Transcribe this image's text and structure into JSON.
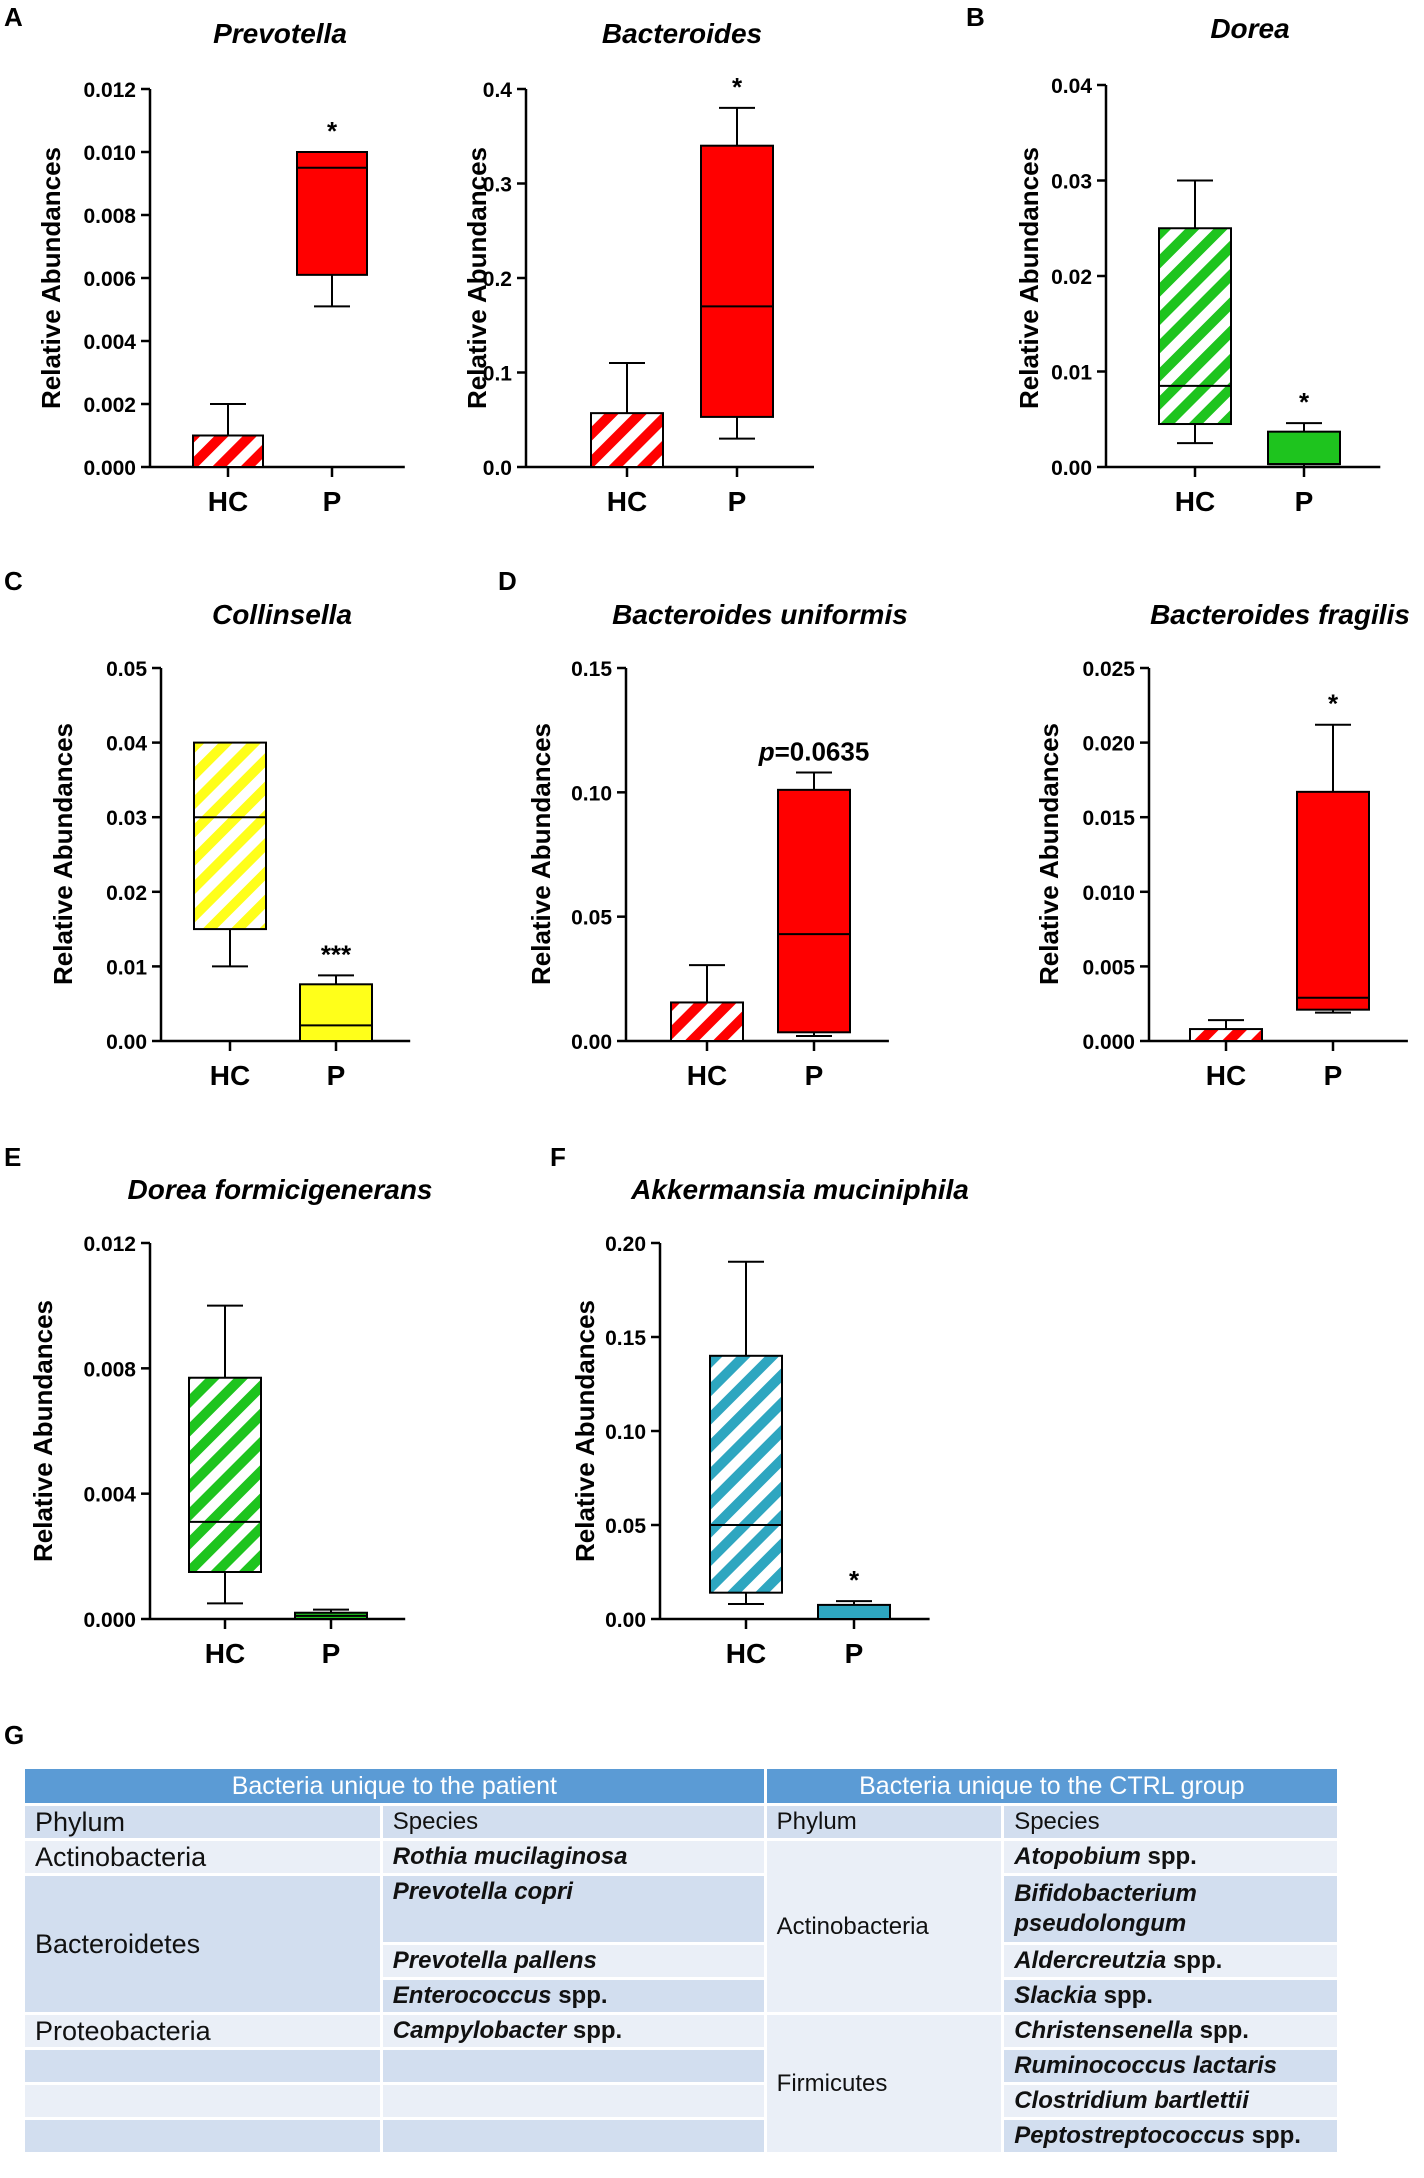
{
  "colors": {
    "red": "#ff0000",
    "green": "#1ec41e",
    "yellow": "#ffff1a",
    "teal": "#2ea6c0",
    "header_blue": "#5b9bd5",
    "row_light": "#eaeff7",
    "row_dark": "#d2deef"
  },
  "chart_data": [
    {
      "panel": "A",
      "type": "box",
      "title": "Prevotella",
      "ylabel": "Relative Abundances",
      "ylim": [
        0,
        0.012
      ],
      "yticks": [
        "0.000",
        "0.002",
        "0.004",
        "0.006",
        "0.008",
        "0.010",
        "0.012"
      ],
      "groups": [
        {
          "name": "HC",
          "min": 0.0,
          "q1": 0.0,
          "median": 0.0,
          "q3": 0.001,
          "max": 0.002,
          "color": "red",
          "hatch": true
        },
        {
          "name": "P",
          "min": 0.0051,
          "q1": 0.0061,
          "median": 0.0095,
          "q3": 0.01,
          "max": 0.01,
          "color": "red",
          "hatch": false,
          "annotation": "*"
        }
      ]
    },
    {
      "panel": "",
      "type": "box",
      "title": "Bacteroides",
      "ylabel": "Relative Abundances",
      "ylim": [
        0,
        0.4
      ],
      "yticks": [
        "0.0",
        "0.1",
        "0.2",
        "0.3",
        "0.4"
      ],
      "groups": [
        {
          "name": "HC",
          "min": 0.0,
          "q1": 0.0,
          "median": 0.0,
          "q3": 0.057,
          "max": 0.11,
          "color": "red",
          "hatch": true
        },
        {
          "name": "P",
          "min": 0.03,
          "q1": 0.053,
          "median": 0.17,
          "q3": 0.34,
          "max": 0.38,
          "color": "red",
          "hatch": false,
          "annotation": "*"
        }
      ]
    },
    {
      "panel": "B",
      "type": "box",
      "title": "Dorea",
      "ylabel": "Relative Abundances",
      "ylim": [
        0,
        0.04
      ],
      "yticks": [
        "0.00",
        "0.01",
        "0.02",
        "0.03",
        "0.04"
      ],
      "groups": [
        {
          "name": "HC",
          "min": 0.0025,
          "q1": 0.0045,
          "median": 0.0085,
          "q3": 0.025,
          "max": 0.03,
          "color": "green",
          "hatch": true
        },
        {
          "name": "P",
          "min": 0.0,
          "q1": 0.0003,
          "median": 0.0003,
          "q3": 0.0037,
          "max": 0.0046,
          "color": "green",
          "hatch": false,
          "annotation": "*"
        }
      ]
    },
    {
      "panel": "C",
      "type": "box",
      "title": "Collinsella",
      "ylabel": "Relative Abundances",
      "ylim": [
        0,
        0.05
      ],
      "yticks": [
        "0.00",
        "0.01",
        "0.02",
        "0.03",
        "0.04",
        "0.05"
      ],
      "groups": [
        {
          "name": "HC",
          "min": 0.01,
          "q1": 0.015,
          "median": 0.03,
          "q3": 0.04,
          "max": 0.04,
          "color": "yellow",
          "hatch": true
        },
        {
          "name": "P",
          "min": 0.0,
          "q1": 0.0,
          "median": 0.0021,
          "q3": 0.0076,
          "max": 0.0088,
          "color": "yellow",
          "hatch": false,
          "annotation": "***"
        }
      ]
    },
    {
      "panel": "D",
      "type": "box",
      "title": "Bacteroides uniformis",
      "ylabel": "Relative Abundances",
      "ylim": [
        0,
        0.15
      ],
      "yticks": [
        "0.00",
        "0.05",
        "0.10",
        "0.15"
      ],
      "groups": [
        {
          "name": "HC",
          "min": 0.0,
          "q1": 0.0,
          "median": 0.0,
          "q3": 0.0155,
          "max": 0.0305,
          "color": "red",
          "hatch": true
        },
        {
          "name": "P",
          "min": 0.002,
          "q1": 0.0035,
          "median": 0.043,
          "q3": 0.101,
          "max": 0.108,
          "color": "red",
          "hatch": false,
          "annotation": "=0.0635",
          "annotation_prefix": "p"
        }
      ]
    },
    {
      "panel": "",
      "type": "box",
      "title": "Bacteroides fragilis",
      "ylabel": "Relative Abundances",
      "ylim": [
        0,
        0.025
      ],
      "yticks": [
        "0.000",
        "0.005",
        "0.010",
        "0.015",
        "0.020",
        "0.025"
      ],
      "groups": [
        {
          "name": "HC",
          "min": 0.0,
          "q1": 0.0,
          "median": 0.0,
          "q3": 0.0008,
          "max": 0.0014,
          "color": "red",
          "hatch": true
        },
        {
          "name": "P",
          "min": 0.0019,
          "q1": 0.0021,
          "median": 0.0029,
          "q3": 0.0167,
          "max": 0.0212,
          "color": "red",
          "hatch": false,
          "annotation": "*"
        }
      ]
    },
    {
      "panel": "E",
      "type": "box",
      "title": "Dorea formicigenerans",
      "ylabel": "Relative Abundances",
      "ylim": [
        0,
        0.012
      ],
      "yticks": [
        "0.000",
        "0.004",
        "0.008",
        "0.012"
      ],
      "groups": [
        {
          "name": "HC",
          "min": 0.0005,
          "q1": 0.0015,
          "median": 0.0031,
          "q3": 0.0077,
          "max": 0.01,
          "color": "green",
          "hatch": true
        },
        {
          "name": "P",
          "min": 0.0,
          "q1": 0.0,
          "median": 0.0001,
          "q3": 0.0002,
          "max": 0.0003,
          "color": "green",
          "hatch": false,
          "annotation": ""
        }
      ]
    },
    {
      "panel": "F",
      "type": "box",
      "title": "Akkermansia muciniphila",
      "ylabel": "Relative Abundances",
      "ylim": [
        0,
        0.2
      ],
      "yticks": [
        "0.00",
        "0.05",
        "0.10",
        "0.15",
        "0.20"
      ],
      "groups": [
        {
          "name": "HC",
          "min": 0.008,
          "q1": 0.014,
          "median": 0.05,
          "q3": 0.14,
          "max": 0.19,
          "color": "teal",
          "hatch": true
        },
        {
          "name": "P",
          "min": 0.0,
          "q1": 0.0,
          "median": 0.0,
          "q3": 0.0075,
          "max": 0.0095,
          "color": "teal",
          "hatch": false,
          "annotation": "*"
        }
      ]
    }
  ],
  "table": {
    "panel_label": "G",
    "header_left": "Bacteria unique to the patient",
    "header_right": "Bacteria unique to the CTRL group",
    "col_phylum": "Phylum",
    "col_species": "Species",
    "patient": {
      "actino_phylum": "Actinobacteria",
      "actino_species": "Rothia mucilaginosa",
      "bacteroidetes_phylum": "Bacteroidetes",
      "bact_sp1": "Prevotella copri",
      "bact_sp2": "Prevotella pallens",
      "bact_sp3_genus": "Enterococcus",
      "proteo_phylum": "Proteobacteria",
      "proteo_sp_genus": "Campylobacter"
    },
    "ctrl": {
      "actino_phylum": "Actinobacteria",
      "sp1_genus": "Atopobium",
      "sp2": "Bifidobacterium pseudolongum",
      "sp3_genus": "Aldercreutzia",
      "sp4_genus": "Slackia",
      "firm_phylum": "Firmicutes",
      "sp5_genus": "Christensenella",
      "sp6": "Ruminococcus lactaris",
      "sp7": "Clostridium bartlettii",
      "sp8_genus": "Peptostreptococcus"
    },
    "spp": "spp."
  }
}
